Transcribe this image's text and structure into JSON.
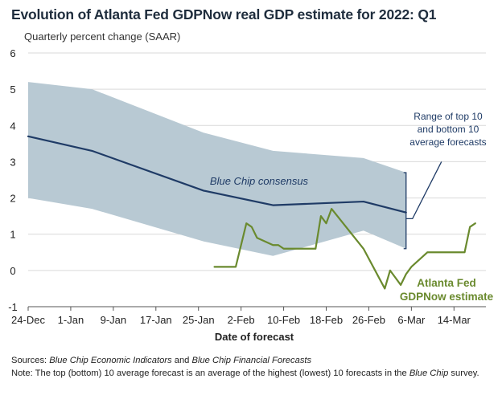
{
  "title": "Evolution of Atlanta Fed GDPNow real GDP estimate for 2022: Q1",
  "subtitle": "Quarterly percent change (SAAR)",
  "colors": {
    "band": "#b8c9d3",
    "bluechip": "#1f3b66",
    "gdpnow": "#6a8a2e",
    "grid": "#d9d9d9",
    "annotation": "#1f3b66"
  },
  "chart_data": {
    "type": "line",
    "xlabel": "Date of forecast",
    "ylabel": "",
    "ylim": [
      -1,
      6
    ],
    "yticks": [
      "-1",
      "0",
      "1",
      "2",
      "3",
      "4",
      "5",
      "6"
    ],
    "xlim": [
      "2021-12-24",
      "2022-03-20"
    ],
    "xticks": [
      "24-Dec",
      "1-Jan",
      "9-Jan",
      "17-Jan",
      "25-Jan",
      "2-Feb",
      "10-Feb",
      "18-Feb",
      "26-Feb",
      "6-Mar",
      "14-Mar"
    ],
    "grid": "horizontal",
    "series": [
      {
        "name": "Blue Chip consensus",
        "x": [
          "2021-12-24",
          "2022-01-05",
          "2022-01-26",
          "2022-02-08",
          "2022-02-25",
          "2022-03-05"
        ],
        "values": [
          3.7,
          3.3,
          2.2,
          1.8,
          1.9,
          1.6
        ]
      },
      {
        "name": "Atlanta Fed GDPNow estimate",
        "x": [
          "2022-01-28",
          "2022-02-01",
          "2022-02-03",
          "2022-02-04",
          "2022-02-05",
          "2022-02-08",
          "2022-02-09",
          "2022-02-10",
          "2022-02-16",
          "2022-02-17",
          "2022-02-18",
          "2022-02-19",
          "2022-02-25",
          "2022-03-01",
          "2022-03-02",
          "2022-03-03",
          "2022-03-04",
          "2022-03-05",
          "2022-03-06",
          "2022-03-09",
          "2022-03-16",
          "2022-03-17",
          "2022-03-18"
        ],
        "values": [
          0.1,
          0.1,
          1.3,
          1.2,
          0.9,
          0.7,
          0.7,
          0.6,
          0.6,
          1.5,
          1.3,
          1.7,
          0.6,
          -0.5,
          0.0,
          -0.2,
          -0.4,
          -0.1,
          0.1,
          0.5,
          0.5,
          1.2,
          1.3
        ]
      }
    ],
    "band": {
      "name": "Range of top 10 and bottom 10 average forecasts",
      "x": [
        "2021-12-24",
        "2022-01-05",
        "2022-01-26",
        "2022-02-08",
        "2022-02-25",
        "2022-03-05"
      ],
      "upper": [
        5.2,
        5.0,
        3.8,
        3.3,
        3.1,
        2.7
      ],
      "lower": [
        2.0,
        1.7,
        0.8,
        0.4,
        1.1,
        0.6
      ]
    },
    "annotations": {
      "bluechip": "Blue Chip consensus",
      "range": [
        "Range of top 10",
        "and bottom 10",
        "average forecasts"
      ],
      "gdpnow": [
        "Atlanta Fed",
        "GDPNow estimate"
      ]
    }
  },
  "notes": {
    "sources_lead": "Sources: ",
    "sources_italic_1": "Blue Chip Economic Indicators",
    "sources_mid": " and ",
    "sources_italic_2": "Blue Chip Financial Forecasts",
    "note_lead": "Note: ",
    "note_text": "The top (bottom) 10 average forecast is an average of the highest (lowest) 10 forecasts in the ",
    "note_italic": "Blue Chip",
    "note_tail": " survey."
  }
}
